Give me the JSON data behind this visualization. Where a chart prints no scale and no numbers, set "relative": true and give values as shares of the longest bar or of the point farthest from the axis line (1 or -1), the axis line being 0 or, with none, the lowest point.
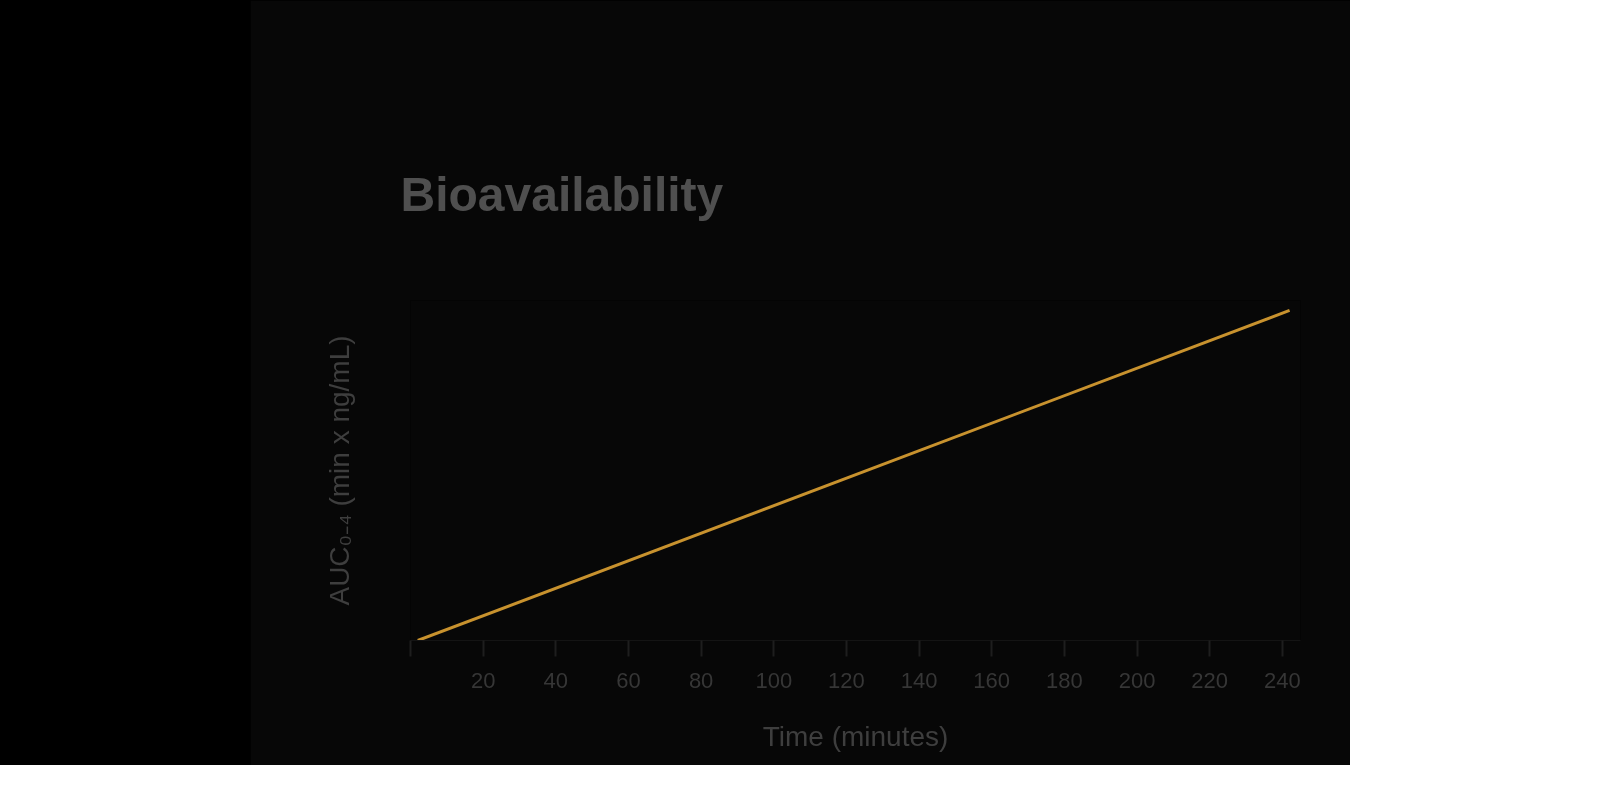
{
  "chart_data": {
    "type": "line",
    "title": "Bioavailability",
    "xlabel": "Time (minutes)",
    "ylabel": "AUC₀₋₄ (min x ng/mL)",
    "relative": true,
    "x": [
      2,
      242
    ],
    "xlim": [
      0,
      245
    ],
    "xticks": [
      {
        "value": 0,
        "label": null
      },
      20,
      40,
      60,
      80,
      100,
      120,
      140,
      160,
      180,
      200,
      220,
      240
    ],
    "series": [
      {
        "color": "#c8922e",
        "values": [
          0,
          1
        ]
      }
    ],
    "grid": false,
    "marker": "none",
    "line_style": "solid"
  }
}
